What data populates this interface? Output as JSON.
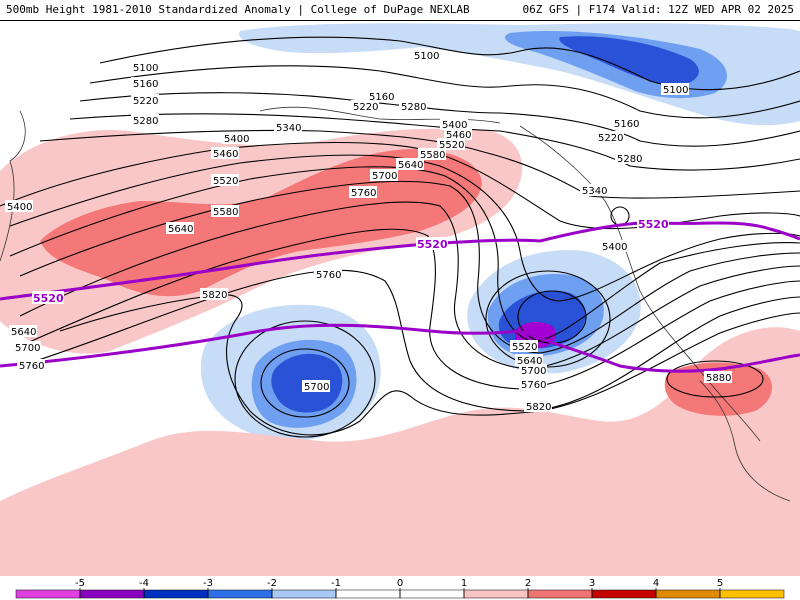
{
  "header": {
    "title_left": "500mb Height 1981-2010 Standardized Anomaly | College of DuPage NEXLAB",
    "title_right": "06Z GFS | F174 Valid: 12Z WED APR 02 2025"
  },
  "map": {
    "contour_labels": [
      "5100",
      "5160",
      "5220",
      "5280",
      "5340",
      "5400",
      "5460",
      "5520",
      "5580",
      "5640",
      "5700",
      "5760",
      "5820",
      "5880"
    ],
    "reference_contour": "5520",
    "colors": {
      "neg_light": "#c6dcf7",
      "neg_mid": "#6f9ff0",
      "neg_strong": "#2a52d6",
      "neg_extreme": "#a300d3",
      "pos_light": "#f9c7c7",
      "pos_mid": "#f57878",
      "pos_strong": "#e03a3a",
      "contour": "#000000",
      "reference": "#9b00c8"
    }
  },
  "legend": {
    "ticks": [
      "-5",
      "-4",
      "-3",
      "-2",
      "-1",
      "0",
      "1",
      "2",
      "3",
      "4",
      "5"
    ],
    "bins": [
      {
        "color": "#e040e0"
      },
      {
        "color": "#8a00c0"
      },
      {
        "color": "#0030c0"
      },
      {
        "color": "#2f6fe8"
      },
      {
        "color": "#a9c8f5"
      },
      {
        "color": "#ffffff"
      },
      {
        "color": "#ffffff"
      },
      {
        "color": "#f8c3c3"
      },
      {
        "color": "#f07474"
      },
      {
        "color": "#c40000"
      },
      {
        "color": "#e08a00"
      },
      {
        "color": "#ffc000"
      }
    ]
  }
}
